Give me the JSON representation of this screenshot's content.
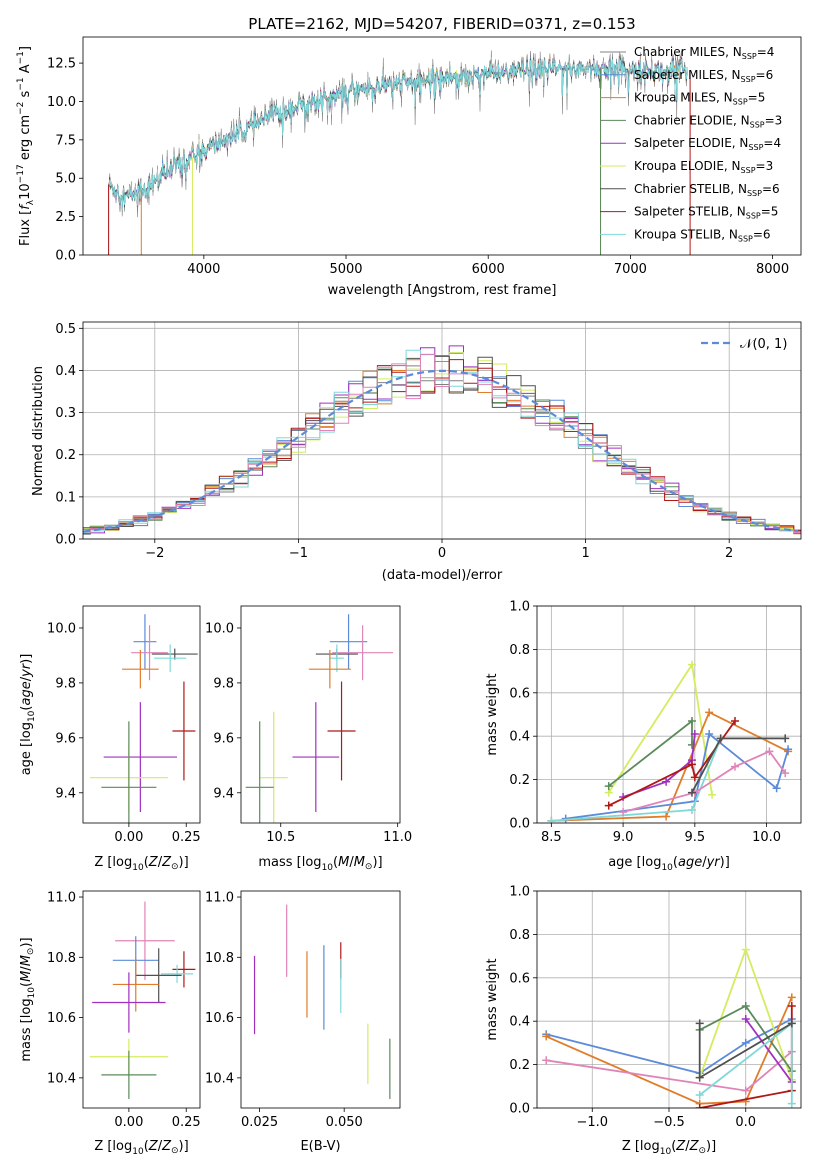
{
  "figure": {
    "title": "PLATE=2162, MJD=54207, FIBERID=0371, z=0.153"
  },
  "colors": {
    "Chabrier MILES": "#808080",
    "Salpeter MILES": "#5b8bd9",
    "Kroupa MILES": "#e07c2a",
    "Chabrier ELODIE": "#5b8a5b",
    "Salpeter ELODIE": "#a030c0",
    "Kroupa ELODIE": "#d4ec60",
    "Chabrier STELIB": "#505050",
    "Salpeter STELIB": "#b01818",
    "Kroupa STELIB": "#80d8d8",
    "pink": "#e084b8",
    "normal": "#5b8bd9"
  },
  "chart_data": [
    {
      "id": "spectrum",
      "type": "line",
      "title": "PLATE=2162, MJD=54207, FIBERID=0371, z=0.153",
      "xlabel": "wavelength [Angstrom, rest frame]",
      "ylabel": "Flux [f_λ 10^-17 erg cm^-2 s^-1 A^-1]",
      "xlim": [
        3150,
        8200
      ],
      "ylim": [
        0,
        14.2
      ],
      "xticks": [
        4000,
        5000,
        6000,
        7000,
        8000
      ],
      "yticks": [
        0.0,
        2.5,
        5.0,
        7.5,
        10.0,
        12.5
      ],
      "legend_position": "right",
      "legend": [
        {
          "name": "Chabrier MILES",
          "nssp": "4"
        },
        {
          "name": "Salpeter MILES",
          "nssp": "6"
        },
        {
          "name": "Kroupa MILES",
          "nssp": "5"
        },
        {
          "name": "Chabrier ELODIE",
          "nssp": "3"
        },
        {
          "name": "Salpeter ELODIE",
          "nssp": "4"
        },
        {
          "name": "Kroupa ELODIE",
          "nssp": "3"
        },
        {
          "name": "Chabrier STELIB",
          "nssp": "6"
        },
        {
          "name": "Salpeter STELIB",
          "nssp": "5"
        },
        {
          "name": "Kroupa STELIB",
          "nssp": "6"
        }
      ],
      "continuum": [
        [
          3330,
          4.6
        ],
        [
          3450,
          3.8
        ],
        [
          3600,
          4.4
        ],
        [
          3800,
          5.8
        ],
        [
          3950,
          6.5
        ],
        [
          4100,
          7.3
        ],
        [
          4300,
          8.2
        ],
        [
          4500,
          9.2
        ],
        [
          4700,
          9.8
        ],
        [
          4900,
          10.3
        ],
        [
          5100,
          10.8
        ],
        [
          5300,
          11.1
        ],
        [
          5500,
          11.3
        ],
        [
          5700,
          11.6
        ],
        [
          5900,
          11.8
        ],
        [
          6100,
          11.9
        ],
        [
          6300,
          12.0
        ],
        [
          6500,
          12.1
        ],
        [
          6700,
          12.2
        ],
        [
          6900,
          12.1
        ],
        [
          7100,
          12.0
        ],
        [
          7400,
          12.0
        ]
      ]
    },
    {
      "id": "residuals",
      "type": "histogram",
      "xlabel": "(data-model)/error",
      "ylabel": "Normed distribution",
      "xlim": [
        -2.5,
        2.5
      ],
      "ylim": [
        0,
        0.515
      ],
      "xticks": [
        -2,
        -1,
        0,
        1,
        2
      ],
      "yticks": [
        0.0,
        0.1,
        0.2,
        0.3,
        0.4,
        0.5
      ],
      "grid": true,
      "legend_position": "top-right",
      "reference": {
        "label": "𝒩(0,1)",
        "mean": 0,
        "sigma": 1
      }
    },
    {
      "id": "age-vs-Z",
      "type": "scatter",
      "xlabel": "Z [log10(Z/Z⊙)]",
      "ylabel": "age  [log10(age/yr)]",
      "xlim": [
        -0.2,
        0.31
      ],
      "ylim": [
        9.29,
        10.08
      ],
      "xticks": [
        0.0,
        0.25
      ],
      "yticks": [
        9.4,
        9.6,
        9.8,
        10.0
      ],
      "points": [
        {
          "series": "Salpeter MILES",
          "x": 0.07,
          "y": 9.95,
          "xerr": 0.05,
          "yerr": 0.1
        },
        {
          "series": "pink",
          "x": 0.09,
          "y": 9.91,
          "xerr": 0.08,
          "yerr": 0.1
        },
        {
          "series": "Chabrier STELIB",
          "x": 0.2,
          "y": 9.905,
          "xerr": 0.1,
          "yerr": 0.02
        },
        {
          "series": "Kroupa STELIB",
          "x": 0.18,
          "y": 9.89,
          "xerr": 0.07,
          "yerr": 0.05
        },
        {
          "series": "Kroupa MILES",
          "x": 0.05,
          "y": 9.85,
          "xerr": 0.08,
          "yerr": 0.07
        },
        {
          "series": "Salpeter STELIB",
          "x": 0.24,
          "y": 9.625,
          "xerr": 0.05,
          "yerr": 0.18
        },
        {
          "series": "Salpeter ELODIE",
          "x": 0.05,
          "y": 9.53,
          "xerr": 0.16,
          "yerr": 0.2
        },
        {
          "series": "Kroupa ELODIE",
          "x": 0.0,
          "y": 9.455,
          "xerr": 0.17,
          "yerr": 0.12
        },
        {
          "series": "Chabrier ELODIE",
          "x": 0.0,
          "y": 9.42,
          "xerr": 0.12,
          "yerr": 0.24
        }
      ]
    },
    {
      "id": "age-vs-mass",
      "type": "scatter",
      "xlabel": "mass [log10(M/M⊙)]",
      "ylabel": "",
      "xlim": [
        10.33,
        11.01
      ],
      "ylim": [
        9.29,
        10.08
      ],
      "xticks": [
        10.5,
        11.0
      ],
      "yticks": [
        9.4,
        9.6,
        9.8,
        10.0
      ],
      "points": [
        {
          "series": "Salpeter MILES",
          "x": 10.79,
          "y": 9.95,
          "xerr": 0.08,
          "yerr": 0.1
        },
        {
          "series": "pink",
          "x": 10.85,
          "y": 9.91,
          "xerr": 0.13,
          "yerr": 0.1
        },
        {
          "series": "Chabrier STELIB",
          "x": 10.74,
          "y": 9.905,
          "xerr": 0.09,
          "yerr": 0.02
        },
        {
          "series": "Kroupa STELIB",
          "x": 10.74,
          "y": 9.89,
          "xerr": 0.03,
          "yerr": 0.05
        },
        {
          "series": "Kroupa MILES",
          "x": 10.71,
          "y": 9.85,
          "xerr": 0.09,
          "yerr": 0.07
        },
        {
          "series": "Salpeter STELIB",
          "x": 10.76,
          "y": 9.625,
          "xerr": 0.06,
          "yerr": 0.18
        },
        {
          "series": "Salpeter ELODIE",
          "x": 10.65,
          "y": 9.53,
          "xerr": 0.1,
          "yerr": 0.2
        },
        {
          "series": "Kroupa ELODIE",
          "x": 10.47,
          "y": 9.455,
          "xerr": 0.06,
          "yerr": 0.24
        },
        {
          "series": "Chabrier ELODIE",
          "x": 10.41,
          "y": 9.42,
          "xerr": 0.06,
          "yerr": 0.24
        }
      ]
    },
    {
      "id": "weight-vs-age",
      "type": "line",
      "xlabel": "age  [log10(age/yr)]",
      "ylabel": "mass weight",
      "xlim": [
        8.4,
        10.24
      ],
      "ylim": [
        0,
        1.0
      ],
      "xticks": [
        8.5,
        9.0,
        9.5,
        10.0
      ],
      "yticks": [
        0.0,
        0.2,
        0.4,
        0.6,
        0.8,
        1.0
      ],
      "grid": true,
      "series": [
        {
          "name": "Kroupa ELODIE",
          "points": [
            [
              8.9,
              0.14
            ],
            [
              9.48,
              0.73
            ],
            [
              9.62,
              0.13
            ]
          ]
        },
        {
          "name": "Chabrier ELODIE",
          "points": [
            [
              8.9,
              0.17
            ],
            [
              9.48,
              0.47
            ],
            [
              9.48,
              0.36
            ]
          ]
        },
        {
          "name": "Kroupa MILES",
          "points": [
            [
              8.5,
              0.01
            ],
            [
              9.3,
              0.03
            ],
            [
              9.6,
              0.51
            ],
            [
              10.15,
              0.33
            ]
          ]
        },
        {
          "name": "Salpeter MILES",
          "points": [
            [
              8.6,
              0.02
            ],
            [
              9.5,
              0.1
            ],
            [
              9.6,
              0.41
            ],
            [
              10.07,
              0.16
            ],
            [
              10.15,
              0.34
            ]
          ]
        },
        {
          "name": "Salpeter ELODIE",
          "points": [
            [
              9.0,
              0.12
            ],
            [
              9.3,
              0.19
            ],
            [
              9.48,
              0.29
            ],
            [
              9.5,
              0.41
            ]
          ]
        },
        {
          "name": "Salpeter STELIB",
          "points": [
            [
              8.9,
              0.08
            ],
            [
              9.48,
              0.27
            ],
            [
              9.5,
              0.21
            ],
            [
              9.78,
              0.47
            ]
          ]
        },
        {
          "name": "Kroupa STELIB",
          "points": [
            [
              8.5,
              0.01
            ],
            [
              9.48,
              0.06
            ],
            [
              9.68,
              0.39
            ],
            [
              10.13,
              0.39
            ]
          ]
        },
        {
          "name": "pink",
          "points": [
            [
              9.0,
              0.05
            ],
            [
              9.5,
              0.14
            ],
            [
              9.78,
              0.26
            ],
            [
              10.02,
              0.33
            ],
            [
              10.13,
              0.23
            ]
          ]
        },
        {
          "name": "Chabrier STELIB",
          "points": [
            [
              9.48,
              0.14
            ],
            [
              9.68,
              0.39
            ],
            [
              10.13,
              0.39
            ]
          ]
        }
      ]
    },
    {
      "id": "mass-vs-Z",
      "type": "scatter",
      "xlabel": "Z [log10(Z/Z⊙)]",
      "ylabel": "mass [log10(M/M⊙)]",
      "xlim": [
        -0.2,
        0.31
      ],
      "ylim": [
        10.3,
        11.02
      ],
      "xticks": [
        0.0,
        0.25
      ],
      "yticks": [
        10.4,
        10.6,
        10.8,
        11.0
      ],
      "points": [
        {
          "series": "pink",
          "x": 0.07,
          "y": 10.855,
          "xerr": 0.13,
          "yerr": 0.13
        },
        {
          "series": "Salpeter MILES",
          "x": 0.03,
          "y": 10.79,
          "xerr": 0.1,
          "yerr": 0.08
        },
        {
          "series": "Salpeter STELIB",
          "x": 0.24,
          "y": 10.76,
          "xerr": 0.05,
          "yerr": 0.06
        },
        {
          "series": "Kroupa STELIB",
          "x": 0.21,
          "y": 10.745,
          "xerr": 0.07,
          "yerr": 0.03
        },
        {
          "series": "Chabrier STELIB",
          "x": 0.13,
          "y": 10.74,
          "xerr": 0.1,
          "yerr": 0.09
        },
        {
          "series": "Kroupa MILES",
          "x": 0.03,
          "y": 10.71,
          "xerr": 0.1,
          "yerr": 0.09
        },
        {
          "series": "Salpeter ELODIE",
          "x": 0.0,
          "y": 10.65,
          "xerr": 0.16,
          "yerr": 0.1
        },
        {
          "series": "Kroupa ELODIE",
          "x": 0.0,
          "y": 10.47,
          "xerr": 0.17,
          "yerr": 0.06
        },
        {
          "series": "Chabrier ELODIE",
          "x": 0.0,
          "y": 10.41,
          "xerr": 0.12,
          "yerr": 0.08
        }
      ]
    },
    {
      "id": "mass-vs-ebv",
      "type": "scatter",
      "xlabel": "E(B-V)",
      "ylabel": "",
      "xlim": [
        0.0195,
        0.0665
      ],
      "ylim": [
        10.3,
        11.02
      ],
      "xticks": [
        0.025,
        0.05
      ],
      "yticks": [
        10.4,
        10.6,
        10.8,
        11.0
      ],
      "points": [
        {
          "series": "pink",
          "x": 0.033,
          "y": 10.855,
          "yerr": 0.12
        },
        {
          "series": "Salpeter ELODIE",
          "x": 0.0235,
          "y": 10.675,
          "yerr": 0.13
        },
        {
          "series": "Kroupa MILES",
          "x": 0.039,
          "y": 10.71,
          "yerr": 0.11
        },
        {
          "series": "Salpeter MILES",
          "x": 0.044,
          "y": 10.7,
          "yerr": 0.14
        },
        {
          "series": "Salpeter STELIB",
          "x": 0.049,
          "y": 10.79,
          "yerr": 0.06
        },
        {
          "series": "Kroupa STELIB",
          "x": 0.049,
          "y": 10.705,
          "yerr": 0.09
        },
        {
          "series": "Kroupa ELODIE",
          "x": 0.057,
          "y": 10.48,
          "yerr": 0.1
        },
        {
          "series": "Chabrier ELODIE",
          "x": 0.0635,
          "y": 10.43,
          "yerr": 0.1
        }
      ]
    },
    {
      "id": "weight-vs-Z",
      "type": "line",
      "xlabel": "Z [log10(Z/Z⊙)]",
      "ylabel": "mass weight",
      "xlim": [
        -1.36,
        0.36
      ],
      "ylim": [
        0,
        1.0
      ],
      "xticks": [
        -1.0,
        -0.5,
        0.0
      ],
      "yticks": [
        0.0,
        0.2,
        0.4,
        0.6,
        0.8,
        1.0
      ],
      "grid": true,
      "series": [
        {
          "name": "Salpeter MILES",
          "points": [
            [
              -1.3,
              0.34
            ],
            [
              -0.3,
              0.16
            ],
            [
              0.0,
              0.3
            ],
            [
              0.3,
              0.41
            ]
          ]
        },
        {
          "name": "Kroupa MILES",
          "points": [
            [
              -1.3,
              0.33
            ],
            [
              -0.3,
              0.02
            ],
            [
              0.0,
              0.03
            ],
            [
              0.3,
              0.51
            ]
          ]
        },
        {
          "name": "pink",
          "points": [
            [
              -1.3,
              0.22
            ],
            [
              0.0,
              0.08
            ],
            [
              0.3,
              0.26
            ]
          ]
        },
        {
          "name": "Kroupa ELODIE",
          "points": [
            [
              -0.3,
              0.14
            ],
            [
              0.0,
              0.73
            ],
            [
              0.3,
              0.13
            ]
          ]
        },
        {
          "name": "Chabrier ELODIE",
          "points": [
            [
              -0.3,
              0.36
            ],
            [
              0.0,
              0.47
            ],
            [
              0.3,
              0.17
            ]
          ]
        },
        {
          "name": "Salpeter ELODIE",
          "points": [
            [
              0.0,
              0.41
            ],
            [
              0.3,
              0.12
            ]
          ]
        },
        {
          "name": "Salpeter STELIB",
          "points": [
            [
              -0.3,
              0.0
            ],
            [
              0.3,
              0.08
            ],
            [
              0.3,
              0.47
            ]
          ]
        },
        {
          "name": "Kroupa STELIB",
          "points": [
            [
              -0.3,
              0.06
            ],
            [
              0.3,
              0.39
            ],
            [
              0.3,
              0.02
            ]
          ]
        },
        {
          "name": "Chabrier STELIB",
          "points": [
            [
              -0.3,
              0.39
            ],
            [
              -0.3,
              0.14
            ],
            [
              0.3,
              0.39
            ]
          ]
        }
      ]
    }
  ],
  "labels": {
    "spec_xlabel": "wavelength [Angstrom, rest frame]",
    "hist_xlabel": "(data-model)/error",
    "hist_ylabel": "Normed distribution",
    "age_label": "age  [log",
    "mass_label": "mass [log",
    "z_label": "Z [log",
    "ebv_label": "E(B-V)",
    "weight_label": "mass weight",
    "normal_label": "𝒩(0, 1)"
  }
}
